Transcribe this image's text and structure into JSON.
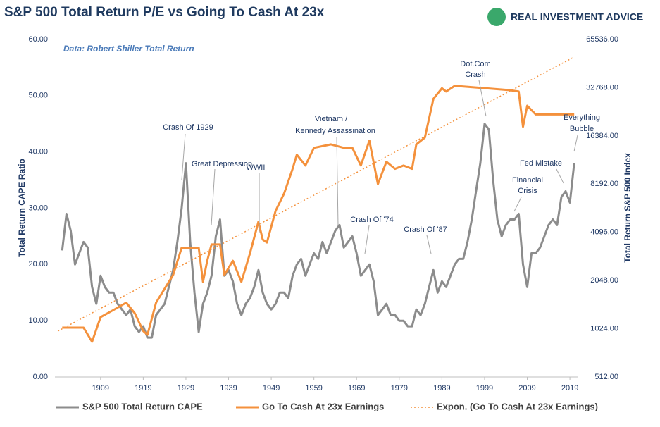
{
  "chart_data": {
    "type": "line",
    "title": "S&P 500 Total Return P/E vs Going To Cash At 23x",
    "brand": "REAL INVESTMENT ADVICE",
    "subtitle": "Data: Robert Shiller Total Return",
    "ylabel": "Total Return CAPE Ratio",
    "y2label": "Total Return S&P 500 Index",
    "xlim": [
      1898.3,
      2020.8
    ],
    "xticks": [
      1909,
      1919,
      1929,
      1939,
      1949,
      1959,
      1969,
      1979,
      1989,
      1999,
      2009,
      2019
    ],
    "ylim": [
      0,
      60
    ],
    "yticks": [
      {
        "value": 0,
        "label": "0.00"
      },
      {
        "value": 10,
        "label": "10.00"
      },
      {
        "value": 20,
        "label": "20.00"
      },
      {
        "value": 30,
        "label": "30.00"
      },
      {
        "value": 40,
        "label": "40.00"
      },
      {
        "value": 50,
        "label": "50.00"
      },
      {
        "value": 60,
        "label": "60.00"
      }
    ],
    "y2scale": "log",
    "y2lim": [
      512,
      65536
    ],
    "y2ticks": [
      {
        "value": 512,
        "label": "512.00"
      },
      {
        "value": 1024,
        "label": "1024.00"
      },
      {
        "value": 2048,
        "label": "2048.00"
      },
      {
        "value": 4096,
        "label": "4096.00"
      },
      {
        "value": 8192,
        "label": "8192.00"
      },
      {
        "value": 16384,
        "label": "16384.00"
      },
      {
        "value": 32768,
        "label": "32768.00"
      },
      {
        "value": 65536,
        "label": "65536.00"
      }
    ],
    "legend": "bottom",
    "series": [
      {
        "name": "S&P 500 Total Return CAPE",
        "color": "#8c8c8c",
        "style": "solid",
        "x": [
          1900,
          1901,
          1902,
          1903,
          1904,
          1905,
          1906,
          1907,
          1908,
          1909,
          1910,
          1911,
          1912,
          1913,
          1914,
          1915,
          1916,
          1917,
          1918,
          1919,
          1920,
          1921,
          1922,
          1923,
          1924,
          1925,
          1926,
          1927,
          1928,
          1929,
          1930,
          1931,
          1932,
          1933,
          1934,
          1935,
          1936,
          1937,
          1938,
          1939,
          1940,
          1941,
          1942,
          1943,
          1944,
          1945,
          1946,
          1947,
          1948,
          1949,
          1950,
          1951,
          1952,
          1953,
          1954,
          1955,
          1956,
          1957,
          1958,
          1959,
          1960,
          1961,
          1962,
          1963,
          1964,
          1965,
          1966,
          1967,
          1968,
          1969,
          1970,
          1971,
          1972,
          1973,
          1974,
          1975,
          1976,
          1977,
          1978,
          1979,
          1980,
          1981,
          1982,
          1983,
          1984,
          1985,
          1986,
          1987,
          1988,
          1989,
          1990,
          1991,
          1992,
          1993,
          1994,
          1995,
          1996,
          1997,
          1998,
          1999,
          2000,
          2001,
          2002,
          2003,
          2004,
          2005,
          2006,
          2007,
          2008,
          2009,
          2010,
          2011,
          2012,
          2013,
          2014,
          2015,
          2016,
          2017,
          2018,
          2019,
          2020
        ],
        "values": [
          22.5,
          29,
          26,
          20,
          22,
          24,
          23,
          16,
          13,
          18,
          16,
          15,
          15,
          13,
          12,
          11,
          12,
          9,
          8,
          9,
          7,
          7,
          11,
          12,
          13,
          16,
          19,
          24,
          30,
          38,
          24,
          15,
          8,
          13,
          15,
          18,
          25,
          28,
          18,
          19,
          17,
          13,
          11,
          13,
          14,
          16,
          19,
          15,
          13,
          12,
          13,
          15,
          15,
          14,
          18,
          20,
          21,
          18,
          20,
          22,
          21,
          24,
          22,
          24,
          26,
          27,
          23,
          24,
          25,
          22,
          18,
          19,
          20,
          17,
          11,
          12,
          13,
          11,
          11,
          10,
          10,
          9,
          9,
          12,
          11,
          13,
          16,
          19,
          15,
          17,
          16,
          18,
          20,
          21,
          21,
          24,
          28,
          33,
          38,
          45,
          44,
          35,
          28,
          25,
          27,
          28,
          28,
          29,
          20,
          16,
          22,
          22,
          23,
          25,
          27,
          28,
          27,
          32,
          33,
          31,
          38
        ]
      },
      {
        "name": "Go To Cash At 23x Earnings",
        "color": "#f4913c",
        "style": "solid",
        "axis": "y2",
        "x": [
          1900,
          1905,
          1907,
          1909,
          1912,
          1915,
          1917,
          1919,
          1920,
          1922,
          1924,
          1926,
          1928,
          1932,
          1933,
          1934,
          1935,
          1937,
          1938,
          1940,
          1942,
          1944,
          1946,
          1947,
          1948,
          1950,
          1952,
          1954,
          1955,
          1957,
          1959,
          1963,
          1966,
          1968,
          1970,
          1972,
          1974,
          1976,
          1978,
          1980,
          1982,
          1983,
          1985,
          1987,
          1989,
          1990,
          1992,
          2005,
          2007,
          2008,
          2009,
          2011,
          2020
        ],
        "values": [
          1040,
          1040,
          850,
          1210,
          1340,
          1490,
          1280,
          990,
          940,
          1490,
          1820,
          2220,
          3280,
          3280,
          2010,
          2720,
          3440,
          3440,
          2220,
          2720,
          2010,
          3020,
          4770,
          3690,
          3540,
          5570,
          7150,
          10200,
          12500,
          10700,
          13800,
          14500,
          13800,
          13800,
          10700,
          15300,
          8200,
          11300,
          10200,
          10700,
          10200,
          14500,
          16000,
          27900,
          32500,
          31000,
          33700,
          31600,
          31000,
          18700,
          25300,
          22300,
          22300
        ]
      },
      {
        "name": "Expon. (Go To Cash At 23x Earnings)",
        "color": "#f4913c",
        "style": "dotted",
        "axis": "y2",
        "x": [
          1899,
          2020
        ],
        "values": [
          990,
          51000
        ]
      }
    ],
    "annotations": [
      "Crash Of 1929",
      "Great Depression",
      "WWII",
      "Vietnam /",
      "Kennedy Assassination",
      "Crash Of '74",
      "Crash Of '87",
      "Dot.Com",
      "Crash",
      "Financial",
      "Crisis",
      "Fed Mistake",
      "Everything",
      "Bubble"
    ]
  }
}
